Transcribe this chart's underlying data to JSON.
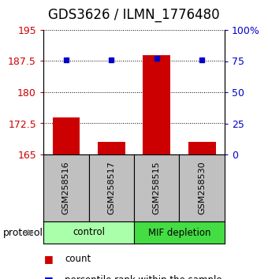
{
  "title": "GDS3626 / ILMN_1776480",
  "samples": [
    "GSM258516",
    "GSM258517",
    "GSM258515",
    "GSM258530"
  ],
  "bar_values": [
    174.0,
    168.0,
    189.0,
    168.0
  ],
  "percentile_values": [
    76.0,
    76.0,
    77.0,
    76.0
  ],
  "ylim_left": [
    165,
    195
  ],
  "ylim_right": [
    0,
    100
  ],
  "yticks_left": [
    165,
    172.5,
    180,
    187.5,
    195
  ],
  "yticks_right": [
    0,
    25,
    50,
    75,
    100
  ],
  "ytick_labels_left": [
    "165",
    "172.5",
    "180",
    "187.5",
    "195"
  ],
  "ytick_labels_right": [
    "0",
    "25",
    "50",
    "75",
    "100%"
  ],
  "bar_color": "#cc0000",
  "dot_color": "#0000cc",
  "bar_base": 165,
  "protocol_groups": [
    {
      "label": "control",
      "samples": [
        0,
        1
      ],
      "color": "#aaffaa"
    },
    {
      "label": "MIF depletion",
      "samples": [
        2,
        3
      ],
      "color": "#44dd44"
    }
  ],
  "sample_box_color": "#c0c0c0",
  "title_fontsize": 12,
  "tick_fontsize": 9,
  "label_fontsize": 9,
  "bar_width": 0.6,
  "bg_color": "#ffffff"
}
